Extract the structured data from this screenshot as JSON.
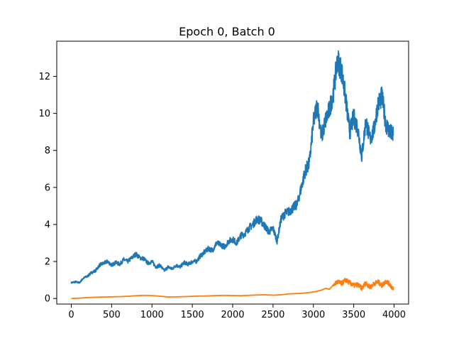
{
  "chart_data": {
    "type": "line",
    "title": "Epoch 0, Batch 0",
    "xlabel": "",
    "ylabel": "",
    "xlim": [
      -180,
      4180
    ],
    "ylim": [
      -0.3,
      13.9
    ],
    "xticks": [
      "0",
      "500",
      "1000",
      "1500",
      "2000",
      "2500",
      "3000",
      "3500",
      "4000"
    ],
    "yticks": [
      "0",
      "2",
      "4",
      "6",
      "8",
      "10",
      "12"
    ],
    "grid": false,
    "legend": "none",
    "series": [
      {
        "color": "#1f77b4",
        "x": [
          0,
          50,
          100,
          150,
          200,
          250,
          300,
          350,
          400,
          450,
          500,
          550,
          600,
          650,
          700,
          750,
          800,
          850,
          900,
          950,
          1000,
          1050,
          1100,
          1150,
          1200,
          1250,
          1300,
          1350,
          1400,
          1450,
          1500,
          1550,
          1600,
          1650,
          1700,
          1750,
          1800,
          1850,
          1900,
          1950,
          2000,
          2050,
          2100,
          2150,
          2200,
          2250,
          2300,
          2350,
          2400,
          2450,
          2500,
          2550,
          2600,
          2650,
          2700,
          2750,
          2800,
          2850,
          2900,
          2950,
          3000,
          3050,
          3100,
          3150,
          3200,
          3250,
          3300,
          3350,
          3400,
          3450,
          3500,
          3550,
          3600,
          3650,
          3700,
          3750,
          3800,
          3850,
          3900,
          3950,
          3990
        ],
        "y": [
          0.85,
          0.9,
          0.85,
          1.1,
          1.2,
          1.4,
          1.5,
          1.8,
          1.9,
          2.0,
          1.8,
          1.95,
          1.85,
          2.1,
          2.0,
          2.2,
          2.4,
          2.2,
          2.15,
          1.9,
          2.0,
          1.7,
          1.8,
          1.5,
          1.7,
          1.6,
          1.8,
          1.7,
          1.95,
          1.85,
          2.0,
          2.0,
          2.3,
          2.5,
          2.7,
          2.6,
          3.0,
          2.9,
          2.8,
          3.1,
          3.2,
          3.0,
          3.4,
          3.5,
          3.8,
          4.0,
          4.3,
          4.2,
          3.9,
          3.6,
          3.8,
          3.1,
          4.3,
          4.6,
          4.7,
          4.9,
          5.1,
          6.0,
          6.9,
          7.3,
          9.5,
          10.5,
          8.7,
          9.6,
          10.2,
          11.2,
          12.9,
          12.3,
          10.8,
          9.0,
          9.8,
          9.2,
          7.7,
          9.6,
          8.6,
          9.1,
          10.5,
          10.9,
          9.4,
          9.0,
          8.8
        ]
      },
      {
        "color": "#ff7f0e",
        "x": [
          0,
          100,
          200,
          300,
          400,
          500,
          600,
          700,
          800,
          900,
          1000,
          1100,
          1200,
          1300,
          1400,
          1500,
          1600,
          1700,
          1800,
          1900,
          2000,
          2100,
          2200,
          2300,
          2400,
          2500,
          2600,
          2700,
          2800,
          2900,
          3000,
          3100,
          3150,
          3200,
          3250,
          3300,
          3350,
          3400,
          3450,
          3500,
          3550,
          3600,
          3650,
          3700,
          3750,
          3800,
          3850,
          3900,
          3950,
          3990
        ],
        "y": [
          0.0,
          0.02,
          0.05,
          0.07,
          0.08,
          0.09,
          0.1,
          0.12,
          0.15,
          0.17,
          0.16,
          0.12,
          0.08,
          0.09,
          0.1,
          0.12,
          0.13,
          0.14,
          0.16,
          0.17,
          0.16,
          0.15,
          0.17,
          0.19,
          0.2,
          0.18,
          0.2,
          0.25,
          0.27,
          0.3,
          0.35,
          0.45,
          0.55,
          0.5,
          0.75,
          0.9,
          0.8,
          1.0,
          0.85,
          0.7,
          0.75,
          0.55,
          0.85,
          0.6,
          0.8,
          0.9,
          0.7,
          0.95,
          0.75,
          0.5
        ]
      }
    ]
  }
}
